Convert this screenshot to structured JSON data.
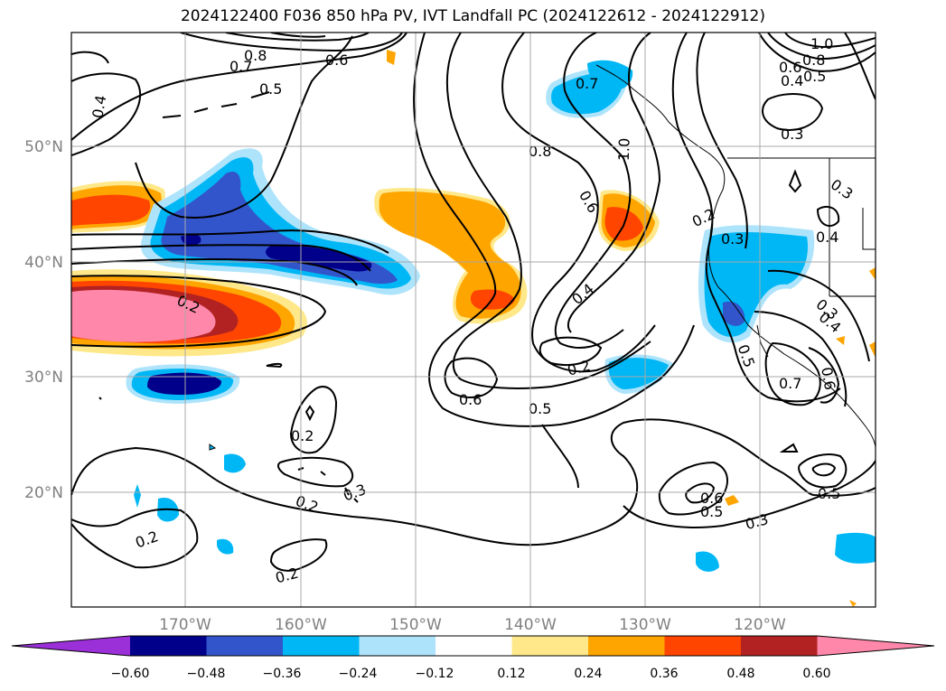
{
  "title": "2024122400 F036 850 hPa PV, IVT Landfall PC (2024122612 - 2024122912)",
  "map": {
    "lon_ticks": [
      "170°W",
      "160°W",
      "150°W",
      "140°W",
      "130°W",
      "120°W"
    ],
    "lat_ticks": [
      "50°N",
      "40°N",
      "30°N",
      "20°N"
    ]
  },
  "contour_labels": [
    "0.8",
    "0.7",
    "0.6",
    "0.5",
    "0.4",
    "1.0",
    "0.8",
    "0.6",
    "0.5",
    "0.4",
    "0.3",
    "0.7",
    "0.8",
    "1.0",
    "0.6",
    "0.3",
    "0.4",
    "0.3",
    "0.2",
    "0.3",
    "0.2",
    "0.4",
    "0.2",
    "0.6",
    "0.5",
    "0.4",
    "0.5",
    "0.7",
    "0.6",
    "0.2",
    "0.3",
    "0.2",
    "0.2",
    "0.2",
    "0.6",
    "0.5",
    "0.3",
    "0.5"
  ],
  "colorbar": {
    "labels": [
      "−0.60",
      "−0.48",
      "−0.36",
      "−0.24",
      "−0.12",
      "0.12",
      "0.24",
      "0.36",
      "0.48",
      "0.60"
    ],
    "colors": [
      "#9b30d9",
      "#00008b",
      "#3355cc",
      "#00b7f5",
      "#aee4fb",
      "#ffffff",
      "#ffe88a",
      "#ffa500",
      "#ff4500",
      "#b22222",
      "#ff88aa"
    ]
  }
}
